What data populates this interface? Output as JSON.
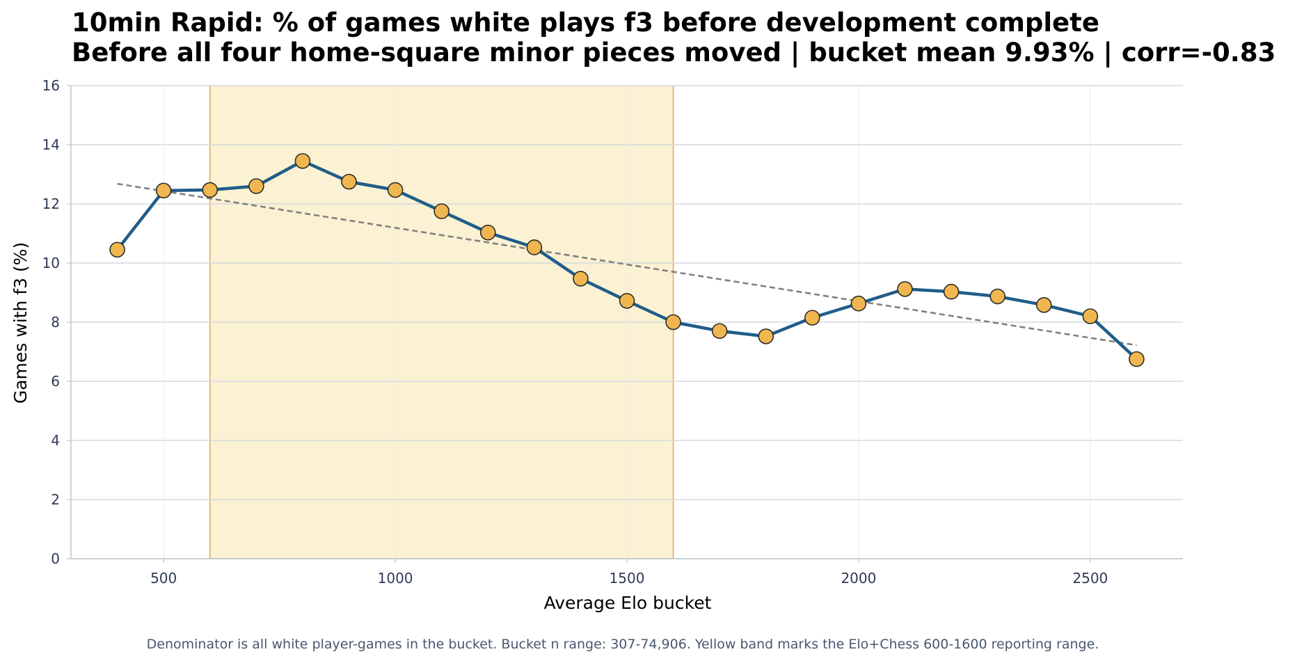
{
  "chart_data": {
    "type": "line",
    "title": "10min Rapid: % of games white plays f3 before development complete",
    "subtitle": "Before all four home-square minor pieces moved | bucket mean 9.93% | corr=-0.83",
    "xlabel": "Average Elo bucket",
    "ylabel": "Games with f3 (%)",
    "xlim": [
      300,
      2700
    ],
    "ylim": [
      0,
      16
    ],
    "xticks": [
      500,
      1000,
      1500,
      2000,
      2500
    ],
    "yticks": [
      0,
      2,
      4,
      6,
      8,
      10,
      12,
      14,
      16
    ],
    "grid": true,
    "x": [
      400,
      500,
      600,
      700,
      800,
      900,
      1000,
      1100,
      1200,
      1300,
      1400,
      1500,
      1600,
      1700,
      1800,
      1900,
      2000,
      2100,
      2200,
      2300,
      2400,
      2500,
      2600
    ],
    "series": [
      {
        "values": [
          10.45,
          12.45,
          12.47,
          12.6,
          13.45,
          12.75,
          12.47,
          11.75,
          11.03,
          10.53,
          9.47,
          8.72,
          8.0,
          7.7,
          7.52,
          8.15,
          8.63,
          9.12,
          9.03,
          8.87,
          8.58,
          8.2,
          6.75
        ],
        "color": "#1f5d8a",
        "marker_color": "#f0b64f"
      }
    ],
    "trendline": {
      "x": [
        400,
        2600
      ],
      "y": [
        12.68,
        7.22
      ],
      "color": "#808080",
      "style": "dashed"
    },
    "highlight_band": {
      "x": [
        600,
        1600
      ],
      "fill": "#fbf1d3",
      "edge": "#e3a86b"
    },
    "footnote": "Denominator is all white player-games in the bucket. Bucket n range: 307-74,906. Yellow band marks the Elo+Chess 600-1600 reporting range."
  }
}
